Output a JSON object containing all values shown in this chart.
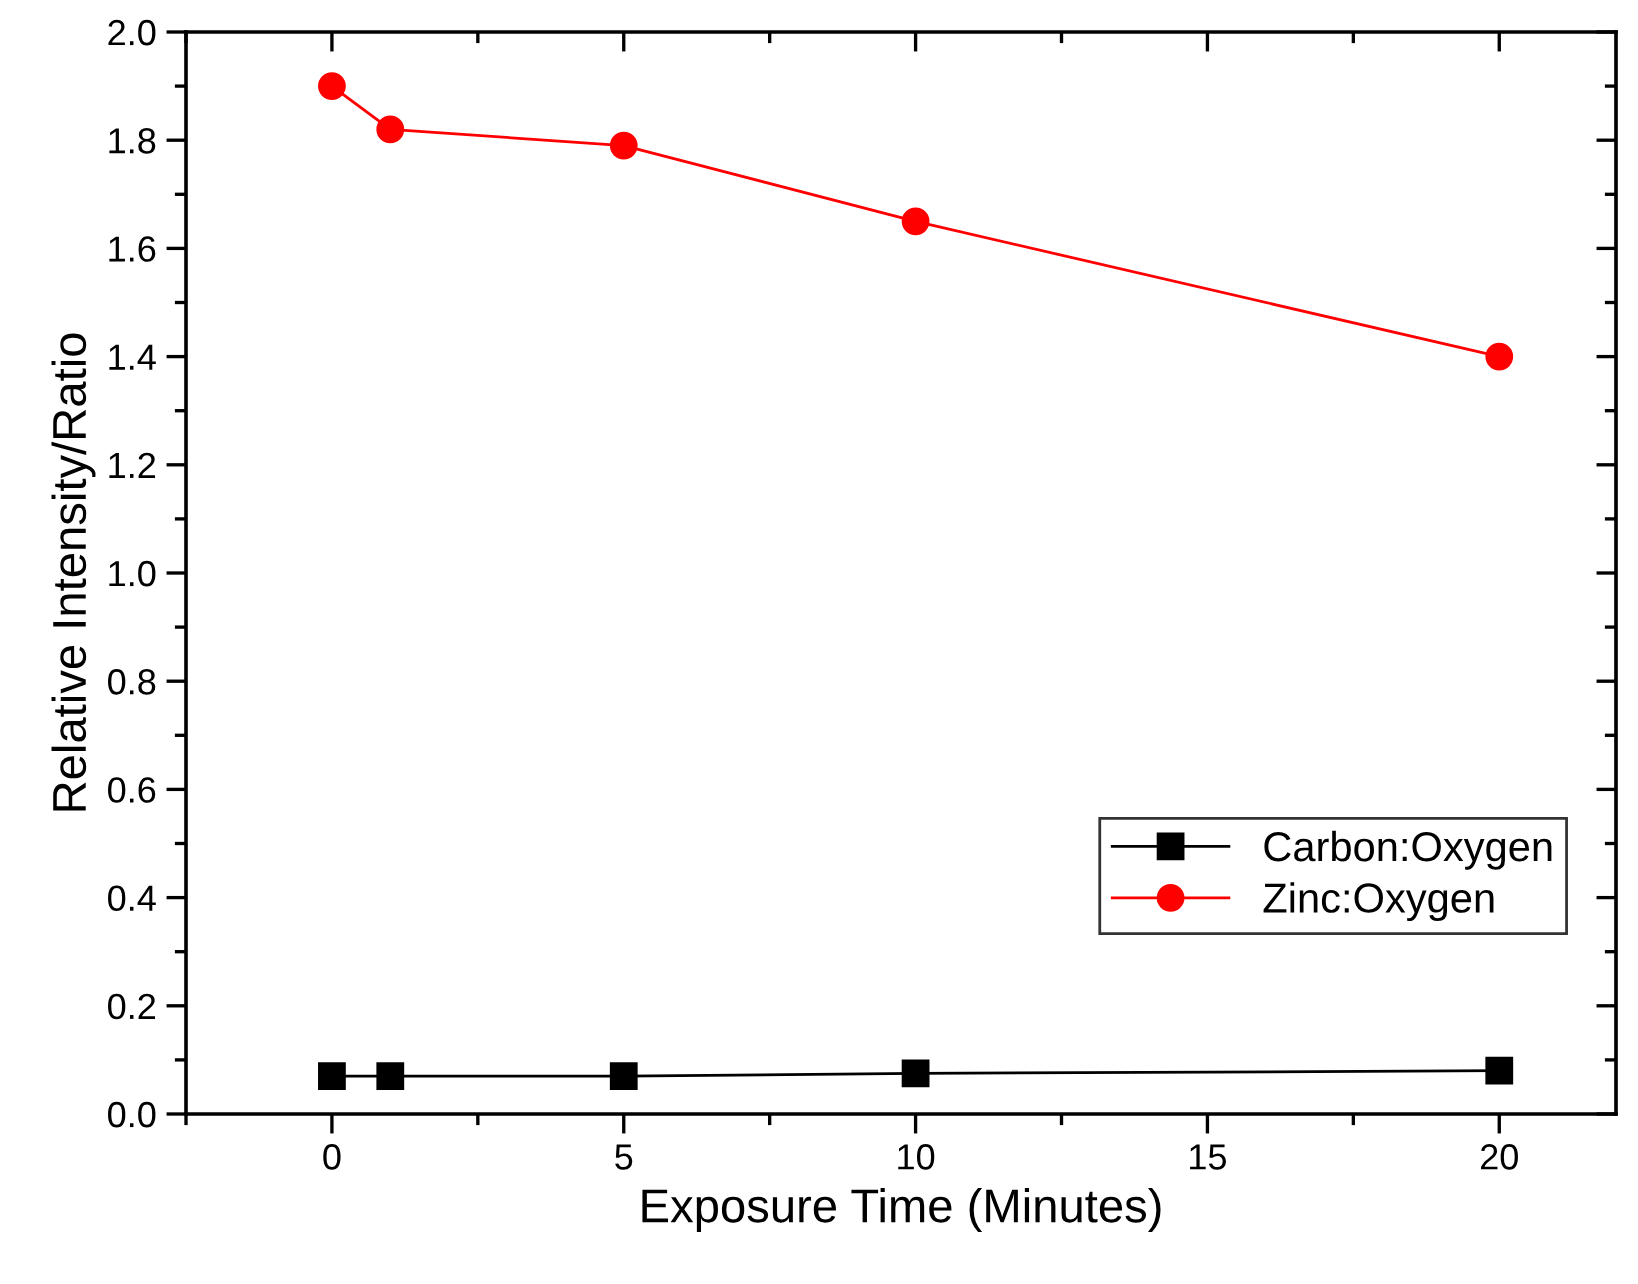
{
  "chart_data": {
    "type": "line",
    "xlabel": "Exposure Time (Minutes)",
    "ylabel": "Relative Intensity/Ratio",
    "x": [
      0,
      1,
      5,
      10,
      20
    ],
    "series": [
      {
        "name": "Carbon:Oxygen",
        "color": "#000000",
        "marker": "square",
        "values": [
          0.07,
          0.07,
          0.07,
          0.075,
          0.08
        ]
      },
      {
        "name": "Zinc:Oxygen",
        "color": "#ff0000",
        "marker": "circle",
        "values": [
          1.9,
          1.82,
          1.79,
          1.65,
          1.4
        ]
      }
    ],
    "xlim": [
      -2.5,
      22
    ],
    "xticks": [
      0,
      5,
      10,
      15,
      20
    ],
    "ylim": [
      0,
      2.0
    ],
    "yticks": [
      {
        "value": 0,
        "label": "0.0"
      },
      0.2,
      0.4,
      0.6,
      0.8,
      {
        "value": 1,
        "label": "1.0"
      },
      1.2,
      1.4,
      1.6,
      1.8,
      {
        "value": 2,
        "label": "2.0"
      }
    ],
    "line_style": "solid",
    "grid": false,
    "legend": "right"
  }
}
